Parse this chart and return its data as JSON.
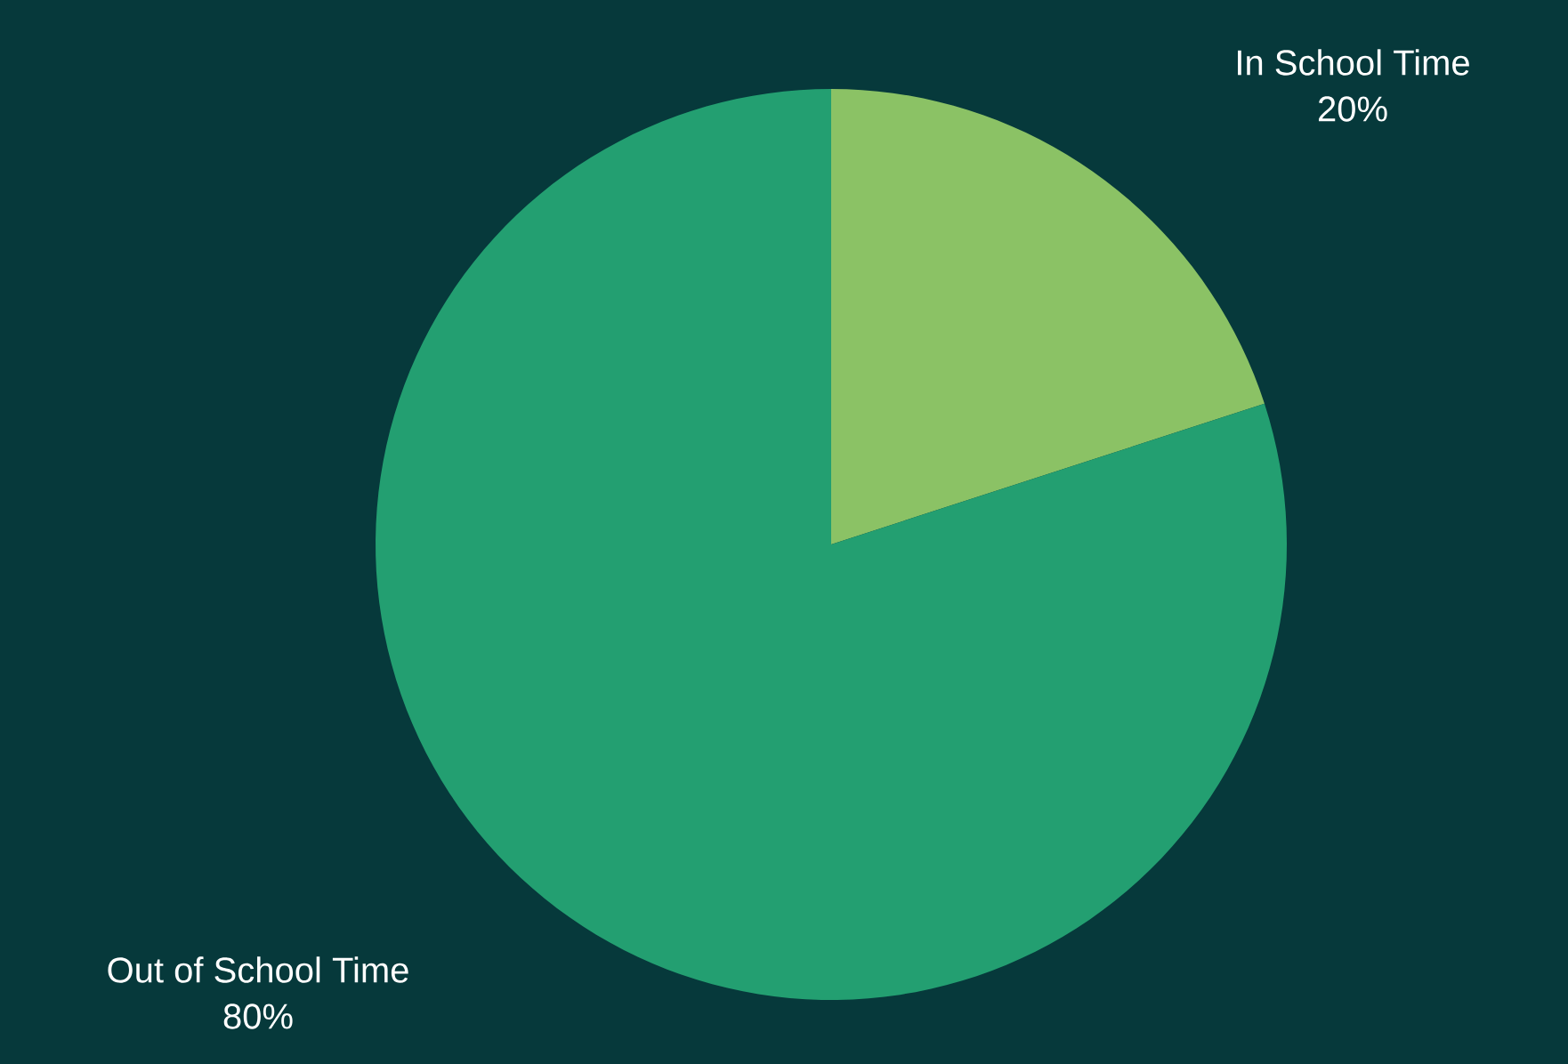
{
  "chart_data": {
    "type": "pie",
    "categories": [
      "In School Time",
      "Out of School Time"
    ],
    "values": [
      20,
      80
    ],
    "colors": [
      "#8bc265",
      "#239f71"
    ],
    "value_labels": [
      "20%",
      "80%"
    ]
  }
}
